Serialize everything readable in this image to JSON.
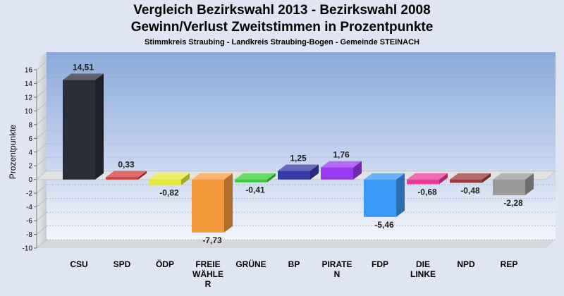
{
  "chart_data": {
    "type": "bar",
    "title": "Vergleich Bezirkswahl 2013 - Bezirkswahl 2008",
    "title2": "Gewinn/Verlust Zweitstimmen in Prozentpunkte",
    "subtitle": "Stimmkreis Straubing - Landkreis Straubing-Bogen - Gemeinde STEINACH",
    "ylabel": "Prozentpunkte",
    "ylim": [
      -10,
      16
    ],
    "ytick_step": 2,
    "grid": true,
    "categories": [
      "CSU",
      "SPD",
      "ÖDP",
      "FREIE WÄHLER",
      "GRÜNE",
      "BP",
      "PIRATEN",
      "FDP",
      "DIE LINKE",
      "NPD",
      "REP"
    ],
    "category_label_lines": [
      [
        "CSU"
      ],
      [
        "SPD"
      ],
      [
        "ÖDP"
      ],
      [
        "FREIE",
        "WÄHLE",
        "R"
      ],
      [
        "GRÜNE"
      ],
      [
        "BP"
      ],
      [
        "PIRATE",
        "N"
      ],
      [
        "FDP"
      ],
      [
        "DIE",
        "LINKE"
      ],
      [
        "NPD"
      ],
      [
        "REP"
      ]
    ],
    "values": [
      14.51,
      0.33,
      -0.82,
      -7.73,
      -0.41,
      1.25,
      1.76,
      -5.46,
      -0.68,
      -0.48,
      -2.28
    ],
    "value_labels": [
      "14,51",
      "0,33",
      "-0,82",
      "-7,73",
      "-0,41",
      "1,25",
      "1,76",
      "-5,46",
      "-0,68",
      "-0,48",
      "-2,28"
    ],
    "colors": [
      "#2a2e36",
      "#d63a3a",
      "#e8e83a",
      "#f4993a",
      "#3acd3a",
      "#343aa8",
      "#9a3af0",
      "#3a9af5",
      "#ec3a9a",
      "#9a3a3a",
      "#9a9a9a"
    ]
  }
}
